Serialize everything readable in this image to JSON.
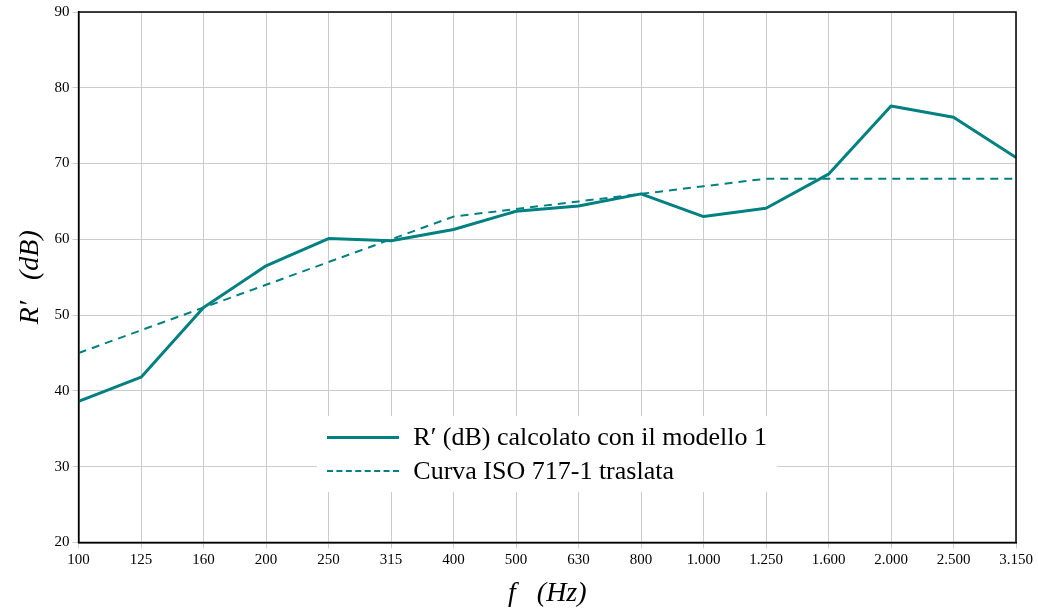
{
  "chart_data": {
    "type": "line",
    "xlabel": "f   (Hz)",
    "ylabel": "R′   (dB)",
    "categories": [
      "100",
      "125",
      "160",
      "200",
      "250",
      "315",
      "400",
      "500",
      "630",
      "800",
      "1.000",
      "1.250",
      "1.600",
      "2.000",
      "2.500",
      "3.150"
    ],
    "series": [
      {
        "name": "R′ (dB) calcolato con il modello 1",
        "color": "#008080",
        "line_style": "solid",
        "values": [
          38.6,
          41.8,
          51.0,
          56.5,
          60.1,
          59.8,
          61.3,
          63.7,
          64.4,
          66.0,
          63.0,
          64.1,
          68.6,
          77.6,
          76.1,
          70.8
        ]
      },
      {
        "name": "Curva ISO 717-1 traslata",
        "color": "#008080",
        "line_style": "dashed",
        "values": [
          45,
          48,
          51,
          54,
          57,
          60,
          63,
          64,
          65,
          66,
          67,
          68,
          68,
          68,
          68,
          68
        ]
      }
    ],
    "ylim": [
      20,
      90
    ],
    "yticks": [
      20,
      30,
      40,
      50,
      60,
      70,
      80,
      90
    ],
    "grid": true,
    "legend": "bottom",
    "marker": "none"
  }
}
